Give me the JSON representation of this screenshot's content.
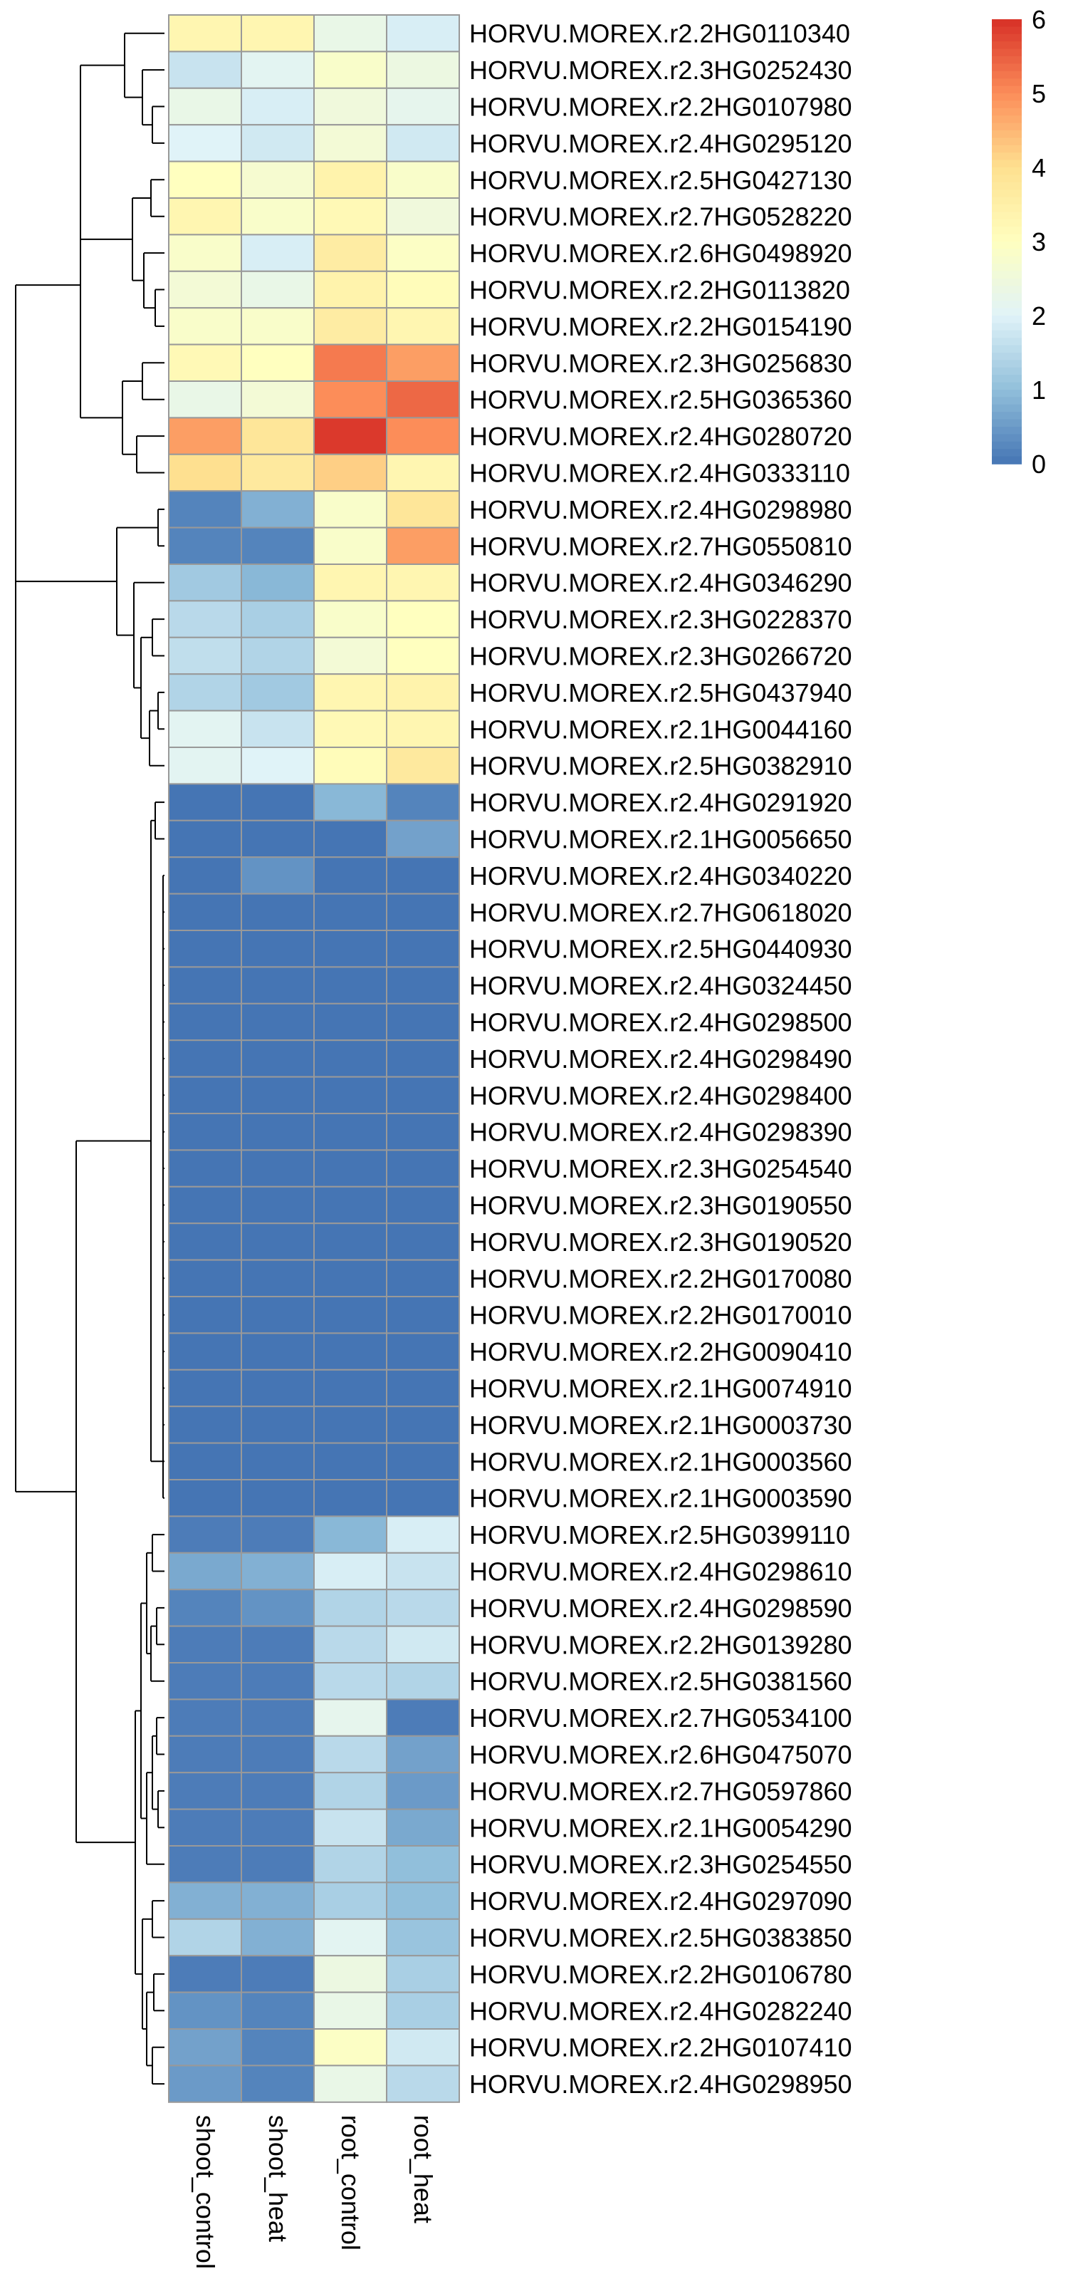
{
  "chart_data": {
    "type": "heatmap",
    "columns": [
      "shoot_control",
      "shoot_heat",
      "root_control",
      "root_heat"
    ],
    "rows": [
      {
        "gene": "HORVU.MOREX.r2.2HG0110340",
        "values": [
          3.3,
          3.3,
          2.3,
          1.9
        ]
      },
      {
        "gene": "HORVU.MOREX.r2.3HG0252430",
        "values": [
          1.7,
          2.1,
          2.8,
          2.4
        ]
      },
      {
        "gene": "HORVU.MOREX.r2.2HG0107980",
        "values": [
          2.3,
          1.9,
          2.5,
          2.2
        ]
      },
      {
        "gene": "HORVU.MOREX.r2.4HG0295120",
        "values": [
          2.0,
          1.8,
          2.6,
          1.8
        ]
      },
      {
        "gene": "HORVU.MOREX.r2.5HG0427130",
        "values": [
          3.0,
          2.7,
          3.4,
          2.8
        ]
      },
      {
        "gene": "HORVU.MOREX.r2.7HG0528220",
        "values": [
          3.3,
          2.8,
          3.2,
          2.5
        ]
      },
      {
        "gene": "HORVU.MOREX.r2.6HG0498920",
        "values": [
          2.8,
          1.9,
          3.6,
          2.9
        ]
      },
      {
        "gene": "HORVU.MOREX.r2.2HG0113820",
        "values": [
          2.6,
          2.3,
          3.4,
          3.1
        ]
      },
      {
        "gene": "HORVU.MOREX.r2.2HG0154190",
        "values": [
          2.8,
          2.8,
          3.6,
          3.3
        ]
      },
      {
        "gene": "HORVU.MOREX.r2.3HG0256830",
        "values": [
          3.2,
          3.0,
          5.2,
          4.8
        ]
      },
      {
        "gene": "HORVU.MOREX.r2.5HG0365360",
        "values": [
          2.3,
          2.6,
          5.0,
          5.4
        ]
      },
      {
        "gene": "HORVU.MOREX.r2.4HG0280720",
        "values": [
          4.8,
          3.8,
          5.9,
          5.0
        ]
      },
      {
        "gene": "HORVU.MOREX.r2.4HG0333110",
        "values": [
          4.0,
          3.7,
          4.2,
          3.3
        ]
      },
      {
        "gene": "HORVU.MOREX.r2.4HG0298980",
        "values": [
          0.2,
          0.8,
          2.8,
          3.8
        ]
      },
      {
        "gene": "HORVU.MOREX.r2.7HG0550810",
        "values": [
          0.2,
          0.2,
          2.8,
          4.8
        ]
      },
      {
        "gene": "HORVU.MOREX.r2.4HG0346290",
        "values": [
          1.2,
          0.9,
          3.3,
          3.3
        ]
      },
      {
        "gene": "HORVU.MOREX.r2.3HG0228370",
        "values": [
          1.5,
          1.3,
          2.8,
          3.0
        ]
      },
      {
        "gene": "HORVU.MOREX.r2.3HG0266720",
        "values": [
          1.6,
          1.4,
          2.6,
          3.0
        ]
      },
      {
        "gene": "HORVU.MOREX.r2.5HG0437940",
        "values": [
          1.4,
          1.2,
          3.3,
          3.4
        ]
      },
      {
        "gene": "HORVU.MOREX.r2.1HG0044160",
        "values": [
          2.1,
          1.7,
          3.2,
          3.3
        ]
      },
      {
        "gene": "HORVU.MOREX.r2.5HG0382910",
        "values": [
          2.1,
          2.0,
          3.1,
          3.7
        ]
      },
      {
        "gene": "HORVU.MOREX.r2.4HG0291920",
        "values": [
          0.0,
          0.0,
          0.9,
          0.2
        ]
      },
      {
        "gene": "HORVU.MOREX.r2.1HG0056650",
        "values": [
          0.0,
          0.0,
          0.0,
          0.6
        ]
      },
      {
        "gene": "HORVU.MOREX.r2.4HG0340220",
        "values": [
          0.0,
          0.4,
          0.0,
          0.0
        ]
      },
      {
        "gene": "HORVU.MOREX.r2.7HG0618020",
        "values": [
          0,
          0,
          0,
          0
        ]
      },
      {
        "gene": "HORVU.MOREX.r2.5HG0440930",
        "values": [
          0,
          0,
          0,
          0
        ]
      },
      {
        "gene": "HORVU.MOREX.r2.4HG0324450",
        "values": [
          0,
          0,
          0,
          0
        ]
      },
      {
        "gene": "HORVU.MOREX.r2.4HG0298500",
        "values": [
          0,
          0,
          0,
          0
        ]
      },
      {
        "gene": "HORVU.MOREX.r2.4HG0298490",
        "values": [
          0,
          0,
          0,
          0
        ]
      },
      {
        "gene": "HORVU.MOREX.r2.4HG0298400",
        "values": [
          0,
          0,
          0,
          0
        ]
      },
      {
        "gene": "HORVU.MOREX.r2.4HG0298390",
        "values": [
          0,
          0,
          0,
          0
        ]
      },
      {
        "gene": "HORVU.MOREX.r2.3HG0254540",
        "values": [
          0,
          0,
          0,
          0
        ]
      },
      {
        "gene": "HORVU.MOREX.r2.3HG0190550",
        "values": [
          0,
          0,
          0,
          0
        ]
      },
      {
        "gene": "HORVU.MOREX.r2.3HG0190520",
        "values": [
          0,
          0,
          0,
          0
        ]
      },
      {
        "gene": "HORVU.MOREX.r2.2HG0170080",
        "values": [
          0,
          0,
          0,
          0
        ]
      },
      {
        "gene": "HORVU.MOREX.r2.2HG0170010",
        "values": [
          0,
          0,
          0,
          0
        ]
      },
      {
        "gene": "HORVU.MOREX.r2.2HG0090410",
        "values": [
          0,
          0,
          0,
          0
        ]
      },
      {
        "gene": "HORVU.MOREX.r2.1HG0074910",
        "values": [
          0,
          0,
          0,
          0
        ]
      },
      {
        "gene": "HORVU.MOREX.r2.1HG0003730",
        "values": [
          0,
          0,
          0,
          0
        ]
      },
      {
        "gene": "HORVU.MOREX.r2.1HG0003560",
        "values": [
          0,
          0,
          0,
          0
        ]
      },
      {
        "gene": "HORVU.MOREX.r2.1HG0003590",
        "values": [
          0,
          0,
          0,
          0
        ]
      },
      {
        "gene": "HORVU.MOREX.r2.5HG0399110",
        "values": [
          0.1,
          0.1,
          0.9,
          1.9
        ]
      },
      {
        "gene": "HORVU.MOREX.r2.4HG0298610",
        "values": [
          0.7,
          0.8,
          1.9,
          1.7
        ]
      },
      {
        "gene": "HORVU.MOREX.r2.4HG0298590",
        "values": [
          0.2,
          0.4,
          1.4,
          1.5
        ]
      },
      {
        "gene": "HORVU.MOREX.r2.2HG0139280",
        "values": [
          0.1,
          0.1,
          1.5,
          1.8
        ]
      },
      {
        "gene": "HORVU.MOREX.r2.5HG0381560",
        "values": [
          0.1,
          0.1,
          1.5,
          1.4
        ]
      },
      {
        "gene": "HORVU.MOREX.r2.7HG0534100",
        "values": [
          0.1,
          0.1,
          2.2,
          0.1
        ]
      },
      {
        "gene": "HORVU.MOREX.r2.6HG0475070",
        "values": [
          0.1,
          0.1,
          1.5,
          0.6
        ]
      },
      {
        "gene": "HORVU.MOREX.r2.7HG0597860",
        "values": [
          0.1,
          0.1,
          1.4,
          0.5
        ]
      },
      {
        "gene": "HORVU.MOREX.r2.1HG0054290",
        "values": [
          0.1,
          0.1,
          1.7,
          0.7
        ]
      },
      {
        "gene": "HORVU.MOREX.r2.3HG0254550",
        "values": [
          0.1,
          0.1,
          1.4,
          1.0
        ]
      },
      {
        "gene": "HORVU.MOREX.r2.4HG0297090",
        "values": [
          0.8,
          0.8,
          1.3,
          1.0
        ]
      },
      {
        "gene": "HORVU.MOREX.r2.5HG0383850",
        "values": [
          1.4,
          0.8,
          2.1,
          1.1
        ]
      },
      {
        "gene": "HORVU.MOREX.r2.2HG0106780",
        "values": [
          0.1,
          0.1,
          2.4,
          1.3
        ]
      },
      {
        "gene": "HORVU.MOREX.r2.4HG0282240",
        "values": [
          0.4,
          0.2,
          2.3,
          1.3
        ]
      },
      {
        "gene": "HORVU.MOREX.r2.2HG0107410",
        "values": [
          0.6,
          0.2,
          2.9,
          1.8
        ]
      },
      {
        "gene": "HORVU.MOREX.r2.4HG0298950",
        "values": [
          0.5,
          0.2,
          2.3,
          1.5
        ]
      }
    ],
    "color_scale": {
      "min": 0,
      "max": 6,
      "colors": [
        "#4575b4",
        "#91bfdb",
        "#e0f3f8",
        "#ffffbf",
        "#fee090",
        "#fc8d59",
        "#d73027"
      ],
      "ticks": [
        0,
        1,
        2,
        3,
        4,
        5,
        6
      ]
    },
    "dendrogram": "rows",
    "legend_position": "right",
    "cell_border_color": "#999999"
  }
}
